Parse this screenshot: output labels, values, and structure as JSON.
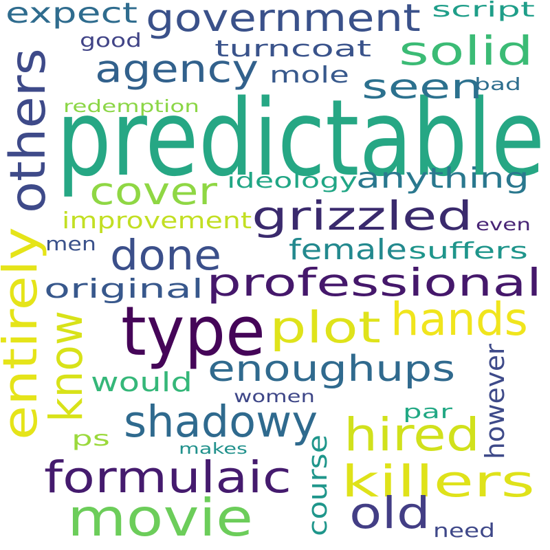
{
  "words": [
    {
      "text": "predictable",
      "color": "#26a784",
      "vertical": false
    },
    {
      "text": "type",
      "color": "#450558",
      "vertical": false
    },
    {
      "text": "movie",
      "color": "#6ccd5a",
      "vertical": false
    },
    {
      "text": "professional",
      "color": "#45186b",
      "vertical": false
    },
    {
      "text": "government",
      "color": "#3a518a",
      "vertical": false
    },
    {
      "text": "grizzled",
      "color": "#3a2a6d",
      "vertical": false
    },
    {
      "text": "formulaic",
      "color": "#451b6e",
      "vertical": false
    },
    {
      "text": "killers",
      "color": "#dfe21a",
      "vertical": false
    },
    {
      "text": "agency",
      "color": "#32618c",
      "vertical": false
    },
    {
      "text": "shadowy",
      "color": "#2f6a8e",
      "vertical": false
    },
    {
      "text": "enoughups",
      "color": "#306a8e",
      "vertical": false
    },
    {
      "text": "hired",
      "color": "#d1e11c",
      "vertical": false
    },
    {
      "text": "hands",
      "color": "#f0e51d",
      "vertical": false
    },
    {
      "text": "plot",
      "color": "#dfe31b",
      "vertical": false
    },
    {
      "text": "done",
      "color": "#3b4f8a",
      "vertical": false
    },
    {
      "text": "cover",
      "color": "#8fd744",
      "vertical": false
    },
    {
      "text": "solid",
      "color": "#3bbb75",
      "vertical": false
    },
    {
      "text": "old",
      "color": "#433e85",
      "vertical": false
    },
    {
      "text": "seen",
      "color": "#2c718e",
      "vertical": false
    },
    {
      "text": "anything",
      "color": "#2a788e",
      "vertical": false
    },
    {
      "text": "expect",
      "color": "#2f6c8e",
      "vertical": false
    },
    {
      "text": "others",
      "color": "#3e4a89",
      "vertical": true
    },
    {
      "text": "entirely",
      "color": "#e5e419",
      "vertical": true
    },
    {
      "text": "know",
      "color": "#d8e219",
      "vertical": true
    },
    {
      "text": "turncoat",
      "color": "#3a538b",
      "vertical": false
    },
    {
      "text": "original",
      "color": "#38588c",
      "vertical": false
    },
    {
      "text": "female",
      "color": "#23898e",
      "vertical": false
    },
    {
      "text": "suffers",
      "color": "#1f958b",
      "vertical": false
    },
    {
      "text": "would",
      "color": "#35b779",
      "vertical": false
    },
    {
      "text": "improvement",
      "color": "#c2df23",
      "vertical": false
    },
    {
      "text": "ideology",
      "color": "#21a685",
      "vertical": false
    },
    {
      "text": "mole",
      "color": "#38598c",
      "vertical": false
    },
    {
      "text": "script",
      "color": "#1f9e89",
      "vertical": false
    },
    {
      "text": "women",
      "color": "#3f4788",
      "vertical": false
    },
    {
      "text": "course",
      "color": "#1f968b",
      "vertical": true
    },
    {
      "text": "however",
      "color": "#3e4a89",
      "vertical": true
    },
    {
      "text": "redemption",
      "color": "#8bd646",
      "vertical": false
    },
    {
      "text": "good",
      "color": "#414487",
      "vertical": false
    },
    {
      "text": "bad",
      "color": "#2e6e8e",
      "vertical": false
    },
    {
      "text": "even",
      "color": "#482475",
      "vertical": false
    },
    {
      "text": "men",
      "color": "#3b528b",
      "vertical": false
    },
    {
      "text": "ps",
      "color": "#9bd93c",
      "vertical": false
    },
    {
      "text": "par",
      "color": "#22a884",
      "vertical": false
    },
    {
      "text": "makes",
      "color": "#21918c",
      "vertical": false
    },
    {
      "text": "need",
      "color": "#3f4889",
      "vertical": false
    }
  ]
}
